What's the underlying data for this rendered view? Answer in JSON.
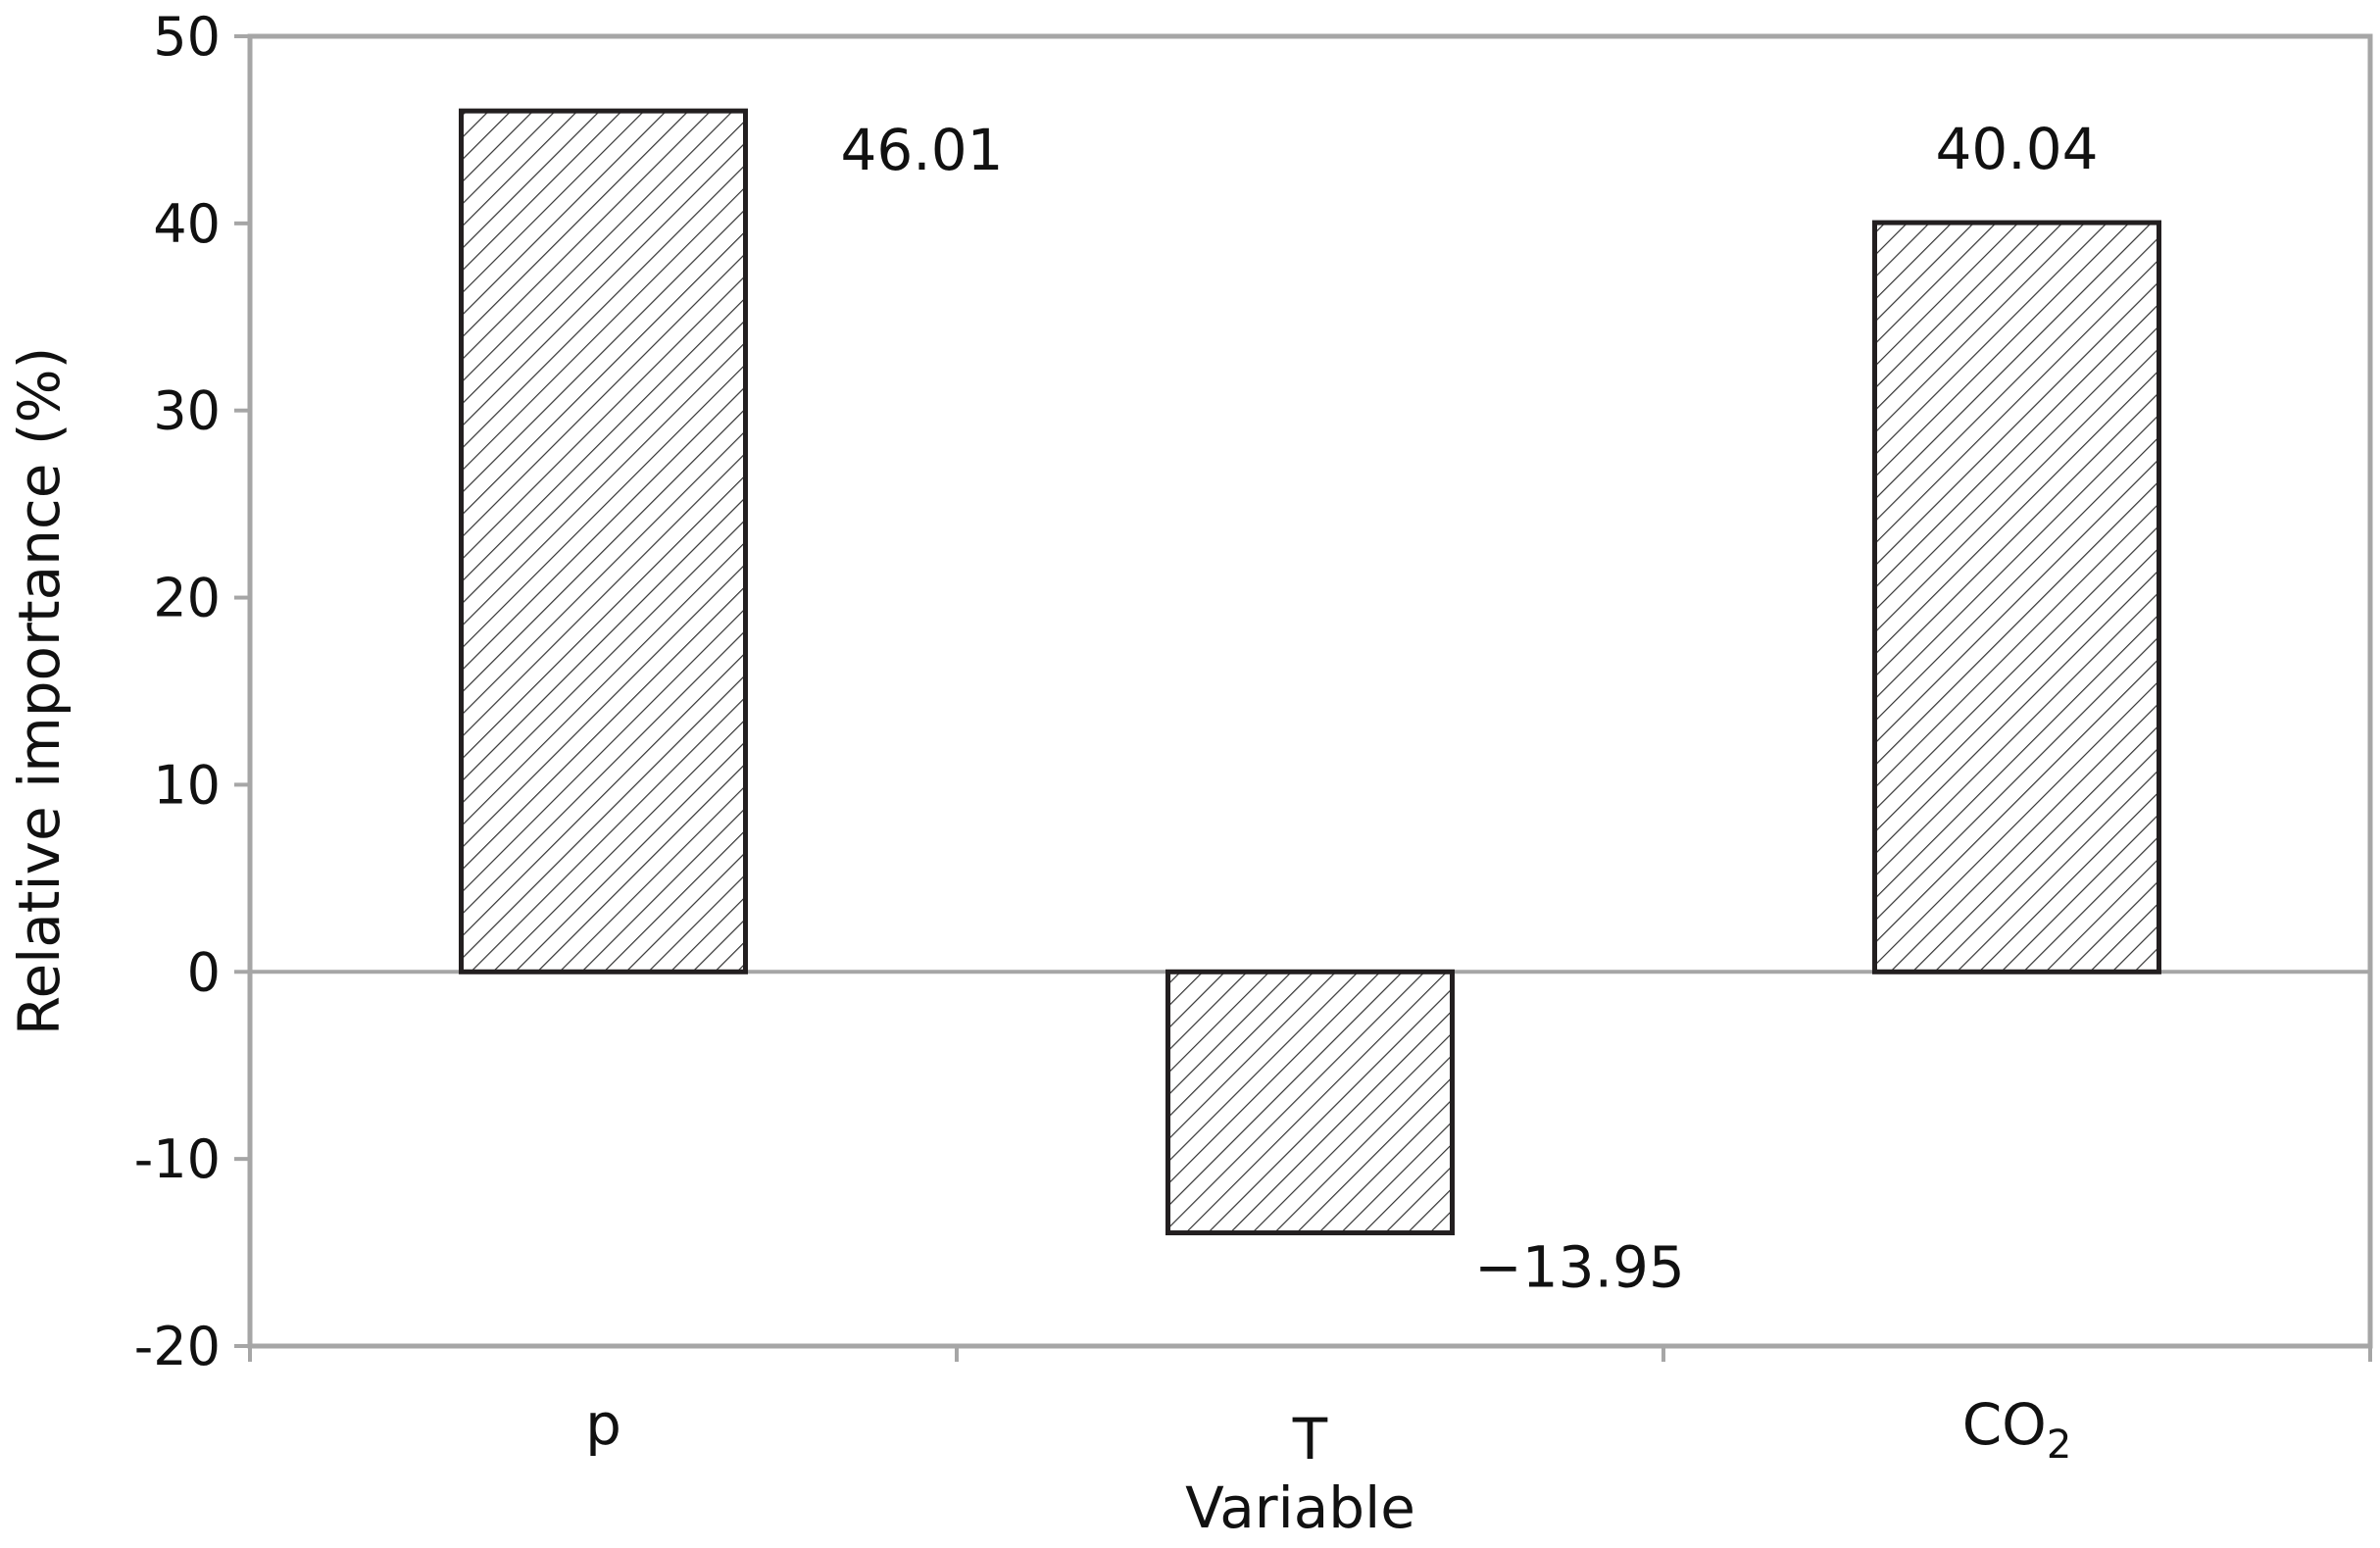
{
  "chart_data": {
    "type": "bar",
    "categories": [
      "p",
      "T",
      "CO2"
    ],
    "category_labels": [
      {
        "main": "p",
        "sub": ""
      },
      {
        "main": "T",
        "sub": ""
      },
      {
        "main": "CO",
        "sub": "2"
      }
    ],
    "values": [
      46.01,
      -13.95,
      40.04
    ],
    "data_labels": [
      "46.01",
      "−13.95",
      "40.04"
    ],
    "title": "",
    "xlabel": "Variable",
    "ylabel": "Relative importance (%)",
    "ylim": [
      -20,
      50
    ],
    "yticks": [
      -20,
      -10,
      0,
      10,
      20,
      30,
      40,
      50
    ],
    "ytick_labels": [
      "-20",
      "-10",
      "0",
      "10",
      "20",
      "30",
      "40",
      "50"
    ],
    "grid": false,
    "legend": "none",
    "bar_fill": "diagonal-hatch",
    "colors": {
      "axis": "#a6a6a6",
      "bar_border": "#231f20",
      "hatch": "#333333",
      "bar_fill": "#ffffff",
      "text": "#111111"
    }
  }
}
